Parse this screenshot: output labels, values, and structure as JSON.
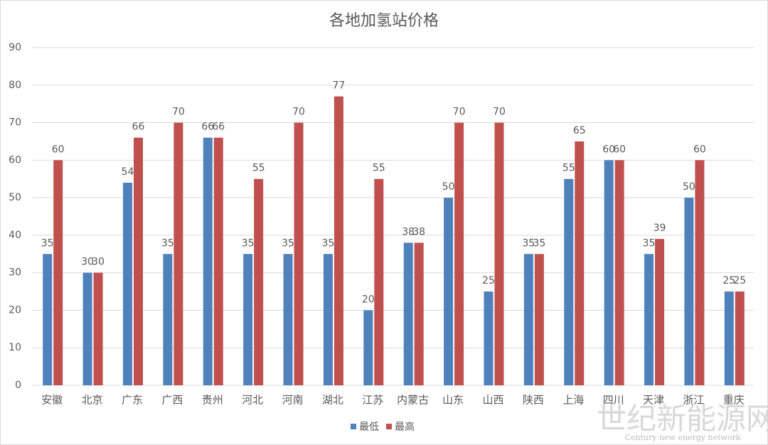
{
  "chart_data": {
    "type": "bar",
    "title": "各地加氢站价格",
    "categories": [
      "安徽",
      "北京",
      "广东",
      "广西",
      "贵州",
      "河北",
      "河南",
      "湖北",
      "江苏",
      "内蒙古",
      "山东",
      "山西",
      "陕西",
      "上海",
      "四川",
      "天津",
      "浙江",
      "重庆"
    ],
    "series": [
      {
        "name": "最低",
        "color": "#4f81bd",
        "values": [
          35,
          30,
          54,
          35,
          66,
          35,
          35,
          35,
          20,
          38,
          50,
          25,
          35,
          55,
          60,
          35,
          50,
          25
        ]
      },
      {
        "name": "最高",
        "color": "#c0504d",
        "values": [
          60,
          30,
          66,
          70,
          66,
          55,
          70,
          77,
          55,
          38,
          70,
          70,
          35,
          65,
          60,
          39,
          60,
          25
        ]
      }
    ],
    "ylim": [
      0,
      90
    ],
    "yticks": [
      0,
      10,
      20,
      30,
      40,
      50,
      60,
      70,
      80,
      90
    ],
    "grid": true,
    "legend": "bottom",
    "watermark": {
      "text": "世纪新能源网",
      "subtext": "Century new energy network"
    }
  }
}
